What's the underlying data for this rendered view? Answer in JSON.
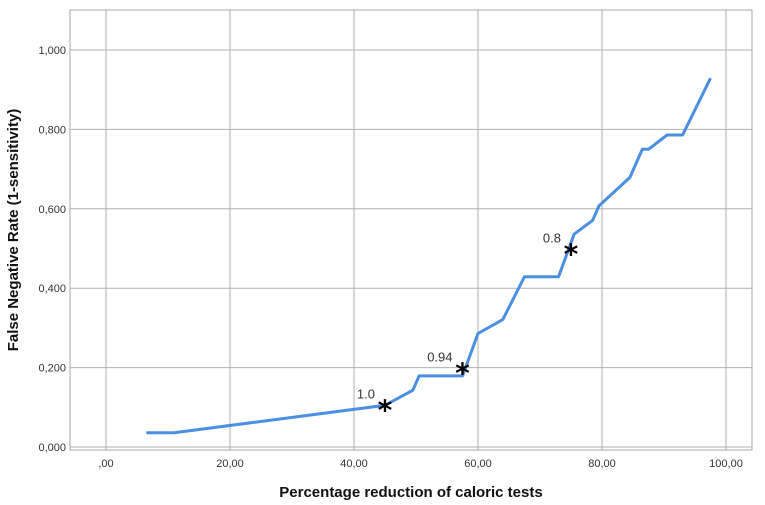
{
  "chart_data": {
    "type": "line",
    "title": "",
    "xlabel": "Percentage reduction of caloric tests",
    "ylabel": "False Negative Rate (1-sensitivity)",
    "xlim": [
      0,
      100
    ],
    "ylim": [
      0,
      1.1
    ],
    "grid": true,
    "line_color": "#4a90e2",
    "x_ticks": [
      {
        "value": 0,
        "label": ",00"
      },
      {
        "value": 20,
        "label": "20,00"
      },
      {
        "value": 40,
        "label": "40,00"
      },
      {
        "value": 60,
        "label": "60,00"
      },
      {
        "value": 80,
        "label": "80,00"
      },
      {
        "value": 100,
        "label": "100,00"
      }
    ],
    "y_ticks": [
      {
        "value": 0,
        "label": "0,000"
      },
      {
        "value": 0.2,
        "label": "0,200"
      },
      {
        "value": 0.4,
        "label": "0,400"
      },
      {
        "value": 0.6,
        "label": "0,600"
      },
      {
        "value": 0.8,
        "label": "0,800"
      },
      {
        "value": 1.0,
        "label": "1,000"
      }
    ],
    "series": [
      {
        "x": [
          6.5,
          11,
          45,
          49.5,
          50.5,
          57.5,
          60,
          64,
          67.5,
          73,
          75.5,
          78.5,
          79.5,
          84.5,
          86.5,
          87.5,
          90.5,
          93,
          97.5
        ],
        "y": [
          0.036,
          0.036,
          0.105,
          0.143,
          0.179,
          0.179,
          0.286,
          0.321,
          0.429,
          0.429,
          0.536,
          0.571,
          0.607,
          0.679,
          0.75,
          0.75,
          0.786,
          0.786,
          0.929
        ]
      }
    ],
    "annotations": [
      {
        "x": 45,
        "y": 0.107,
        "marker": "*",
        "label": "1.0"
      },
      {
        "x": 57.5,
        "y": 0.2,
        "marker": "*",
        "label": "0.94"
      },
      {
        "x": 75,
        "y": 0.5,
        "marker": "*",
        "label": "0.8"
      }
    ]
  }
}
